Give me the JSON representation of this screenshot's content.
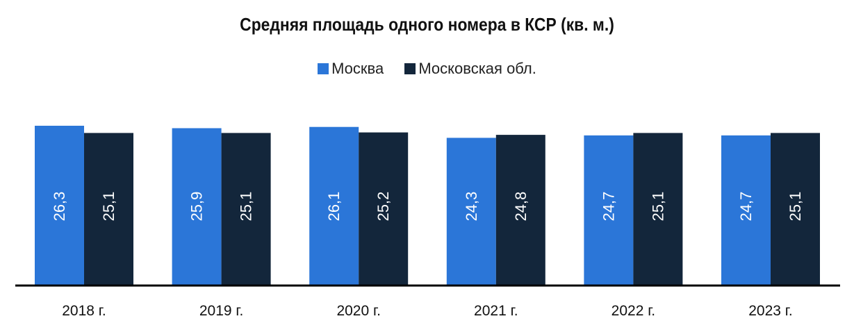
{
  "chart_data": {
    "type": "bar",
    "title": "Средняя площадь одного номера в КСР (кв. м.)",
    "categories": [
      "2018 г.",
      "2019 г.",
      "2020 г.",
      "2021 г.",
      "2022 г.",
      "2023 г."
    ],
    "series": [
      {
        "name": "Москва",
        "color": "#2b76d8",
        "values": [
          26.3,
          25.9,
          26.1,
          24.3,
          24.7,
          24.7
        ],
        "labels": [
          "26,3",
          "25,9",
          "26,1",
          "24,3",
          "24,7",
          "24,7"
        ]
      },
      {
        "name": "Московская обл.",
        "color": "#13263b",
        "values": [
          25.1,
          25.1,
          25.2,
          24.8,
          25.1,
          25.1
        ],
        "labels": [
          "25,1",
          "25,1",
          "25,2",
          "24,8",
          "25,1",
          "25,1"
        ]
      }
    ],
    "ylim": [
      0,
      26.3
    ],
    "legend_position": "top-center",
    "grid": false,
    "data_labels": "inside-rotated"
  }
}
